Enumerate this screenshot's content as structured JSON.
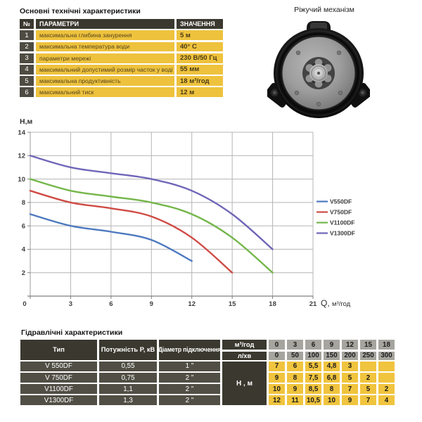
{
  "tech_specs": {
    "title": "Основні технічні характеристики",
    "headers": {
      "num": "№",
      "param": "ПАРАМЕТРИ",
      "value": "ЗНАЧЕННЯ"
    },
    "rows": [
      {
        "num": "1",
        "param": "максимальна глибина занурення",
        "value": "5 м"
      },
      {
        "num": "2",
        "param": "максимальна температура води",
        "value": "40° С"
      },
      {
        "num": "3",
        "param": "параметри мережі",
        "value": "230 В/50 Гц"
      },
      {
        "num": "4",
        "param": "максимальний допустимий розмір часток у воді",
        "value": "55 мм"
      },
      {
        "num": "5",
        "param": "максимальна продуктивність",
        "value": "18 м³/год"
      },
      {
        "num": "6",
        "param": "максимальний тиск",
        "value": "12 м"
      }
    ]
  },
  "mechanism": {
    "label": "Ріжучий механізм"
  },
  "chart_data": {
    "type": "line",
    "title": "",
    "xlabel": "Q, м³/год",
    "ylabel": "Н,м",
    "xlim": [
      0,
      21
    ],
    "ylim": [
      0,
      14
    ],
    "x_ticks": [
      0,
      3,
      6,
      9,
      12,
      15,
      18,
      21
    ],
    "y_ticks": [
      2,
      4,
      6,
      8,
      10,
      12,
      14
    ],
    "grid": true,
    "legend_position": "right",
    "series": [
      {
        "name": "V550DF",
        "color": "#4d79c0",
        "x": [
          0,
          3,
          6,
          9,
          12
        ],
        "y": [
          7,
          6,
          5.5,
          4.8,
          3
        ]
      },
      {
        "name": "V750DF",
        "color": "#cf4b45",
        "x": [
          0,
          3,
          6,
          9,
          12,
          15
        ],
        "y": [
          9,
          8,
          7.5,
          6.8,
          5,
          2
        ]
      },
      {
        "name": "V1100DF",
        "color": "#74b64a",
        "x": [
          0,
          3,
          6,
          9,
          12,
          15,
          18
        ],
        "y": [
          10,
          9,
          8.5,
          8,
          7,
          5,
          2
        ]
      },
      {
        "name": "V1300DF",
        "color": "#6f66b8",
        "x": [
          0,
          3,
          6,
          9,
          12,
          15,
          18
        ],
        "y": [
          12,
          11,
          10.5,
          10,
          9,
          7,
          4
        ]
      }
    ]
  },
  "hydraulic": {
    "title": "Гідравлічні характеристики",
    "col_headers": {
      "type": "Тип",
      "power": "Потужність P, кВ",
      "diameter": "Діаметр підключення"
    },
    "flow_label_m3": "м³/год",
    "flow_label_lmin": "л/хв",
    "flow_m3": [
      "0",
      "3",
      "6",
      "9",
      "12",
      "15",
      "18"
    ],
    "flow_lmin": [
      "0",
      "50",
      "100",
      "150",
      "200",
      "250",
      "300"
    ],
    "head_label": "Н , м",
    "rows": [
      {
        "type": "V 550DF",
        "power": "0,55",
        "diameter": "1 \"",
        "head": [
          "7",
          "6",
          "5,5",
          "4,8",
          "3",
          "",
          ""
        ]
      },
      {
        "type": "V 750DF",
        "power": "0,75",
        "diameter": "2 \"",
        "head": [
          "9",
          "8",
          "7,5",
          "6,8",
          "5",
          "2",
          ""
        ]
      },
      {
        "type": "V1100DF",
        "power": "1,1",
        "diameter": "2 \"",
        "head": [
          "10",
          "9",
          "8,5",
          "8",
          "7",
          "5",
          "2"
        ]
      },
      {
        "type": "V1300DF",
        "power": "1,3",
        "diameter": "2 \"",
        "head": [
          "12",
          "11",
          "10,5",
          "10",
          "9",
          "7",
          "4"
        ]
      }
    ]
  },
  "colors": {
    "accent_yellow": "#eec23d",
    "header_dark": "#3b382f",
    "cell_dark": "#514e45",
    "cell_gray": "#a6a49e",
    "grid_gray": "#b4b4b4"
  }
}
